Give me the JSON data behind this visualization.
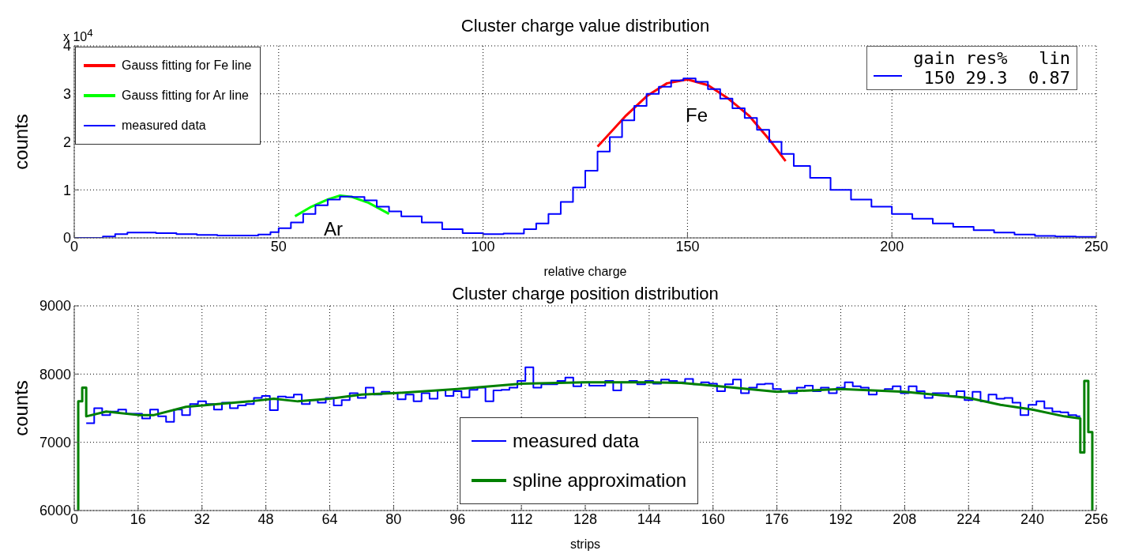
{
  "chart_data": [
    {
      "type": "line",
      "title": "Cluster charge value distribution",
      "xlabel": "relative charge",
      "ylabel": "counts",
      "xlim": [
        0,
        250
      ],
      "xticks": [
        0,
        50,
        100,
        150,
        200,
        250
      ],
      "ylim": [
        0,
        4
      ],
      "yticks": [
        0,
        1,
        2,
        3,
        4
      ],
      "grid": true,
      "legend": "top left",
      "annotations": [
        "x 10$^{4}$",
        "Fe",
        "Ar",
        "gain res%   lin",
        "150 29.3  0.87"
      ],
      "series": [
        {
          "name": "Gauss fitting for Fe line",
          "type": "line",
          "color": "#ff0000",
          "x": [
            128,
            135,
            140,
            145,
            150,
            155,
            160,
            165,
            170,
            174
          ],
          "values": [
            1.9,
            2.55,
            2.95,
            3.22,
            3.3,
            3.18,
            2.9,
            2.55,
            2.05,
            1.6
          ]
        },
        {
          "name": "Gauss fitting for Ar line",
          "type": "line",
          "color": "#00ff00",
          "x": [
            54,
            58,
            62,
            65,
            68,
            72,
            77
          ],
          "values": [
            0.45,
            0.65,
            0.8,
            0.88,
            0.85,
            0.73,
            0.5
          ]
        },
        {
          "name": "measured data",
          "type": "step",
          "color": "#0000ff",
          "x": [
            0,
            5,
            7,
            10,
            13,
            20,
            25,
            30,
            35,
            40,
            45,
            48,
            50,
            53,
            56,
            59,
            62,
            65,
            68,
            71,
            74,
            77,
            80,
            85,
            90,
            95,
            100,
            105,
            110,
            113,
            116,
            119,
            122,
            125,
            128,
            131,
            134,
            137,
            140,
            143,
            146,
            149,
            152,
            155,
            158,
            161,
            164,
            167,
            170,
            173,
            176,
            180,
            185,
            190,
            195,
            200,
            205,
            210,
            215,
            220,
            225,
            230,
            235,
            240,
            245,
            250
          ],
          "values": [
            0,
            0,
            0.03,
            0.08,
            0.11,
            0.1,
            0.08,
            0.06,
            0.05,
            0.05,
            0.07,
            0.12,
            0.2,
            0.32,
            0.5,
            0.68,
            0.8,
            0.86,
            0.85,
            0.78,
            0.65,
            0.55,
            0.45,
            0.32,
            0.18,
            0.1,
            0.08,
            0.09,
            0.18,
            0.3,
            0.5,
            0.75,
            1.05,
            1.4,
            1.8,
            2.1,
            2.45,
            2.75,
            3.0,
            3.15,
            3.28,
            3.32,
            3.25,
            3.1,
            2.9,
            2.7,
            2.5,
            2.25,
            2.0,
            1.75,
            1.5,
            1.25,
            1.0,
            0.8,
            0.65,
            0.5,
            0.4,
            0.3,
            0.23,
            0.16,
            0.11,
            0.07,
            0.04,
            0.03,
            0.02,
            0.01
          ]
        }
      ]
    },
    {
      "type": "line",
      "title": "Cluster charge position distribution",
      "xlabel": "strips",
      "ylabel": "counts",
      "xlim": [
        0,
        256
      ],
      "xticks": [
        0,
        16,
        32,
        48,
        64,
        80,
        96,
        112,
        128,
        144,
        160,
        176,
        192,
        208,
        224,
        240,
        256
      ],
      "ylim": [
        6000,
        9000
      ],
      "yticks": [
        6000,
        7000,
        8000,
        9000
      ],
      "grid": true,
      "legend": "bottom",
      "series": [
        {
          "name": "measured data",
          "type": "step",
          "color": "#0000ff",
          "x": [
            3,
            5,
            7,
            9,
            11,
            13,
            15,
            17,
            19,
            21,
            23,
            25,
            27,
            29,
            31,
            33,
            35,
            37,
            39,
            41,
            43,
            45,
            47,
            49,
            51,
            53,
            55,
            57,
            59,
            61,
            63,
            65,
            67,
            69,
            71,
            73,
            75,
            77,
            79,
            81,
            83,
            85,
            87,
            89,
            91,
            93,
            95,
            97,
            99,
            101,
            103,
            105,
            107,
            109,
            111,
            113,
            115,
            117,
            119,
            121,
            123,
            125,
            127,
            129,
            131,
            133,
            135,
            137,
            139,
            141,
            143,
            145,
            147,
            149,
            151,
            153,
            155,
            157,
            159,
            161,
            163,
            165,
            167,
            169,
            171,
            173,
            175,
            177,
            179,
            181,
            183,
            185,
            187,
            189,
            191,
            193,
            195,
            197,
            199,
            201,
            203,
            205,
            207,
            209,
            211,
            213,
            215,
            217,
            219,
            221,
            223,
            225,
            227,
            229,
            231,
            233,
            235,
            237,
            239,
            241,
            243,
            245,
            247,
            249,
            251,
            252
          ],
          "values": [
            7280,
            7500,
            7400,
            7450,
            7480,
            7420,
            7420,
            7350,
            7480,
            7380,
            7300,
            7480,
            7400,
            7560,
            7600,
            7560,
            7480,
            7580,
            7500,
            7540,
            7560,
            7650,
            7680,
            7470,
            7670,
            7660,
            7700,
            7560,
            7620,
            7580,
            7650,
            7540,
            7620,
            7720,
            7650,
            7800,
            7700,
            7740,
            7720,
            7630,
            7700,
            7600,
            7720,
            7640,
            7760,
            7680,
            7750,
            7660,
            7770,
            7800,
            7600,
            7760,
            7770,
            7800,
            7900,
            8100,
            7800,
            7850,
            7850,
            7900,
            7950,
            7820,
            7880,
            7830,
            7830,
            7900,
            7760,
            7880,
            7900,
            7850,
            7900,
            7860,
            7920,
            7900,
            7880,
            7930,
            7850,
            7880,
            7860,
            7750,
            7850,
            7920,
            7720,
            7800,
            7850,
            7860,
            7780,
            7750,
            7720,
            7800,
            7830,
            7750,
            7800,
            7720,
            7800,
            7880,
            7820,
            7800,
            7700,
            7760,
            7780,
            7820,
            7720,
            7820,
            7750,
            7650,
            7720,
            7720,
            7680,
            7750,
            7620,
            7740,
            7600,
            7700,
            7640,
            7650,
            7580,
            7400,
            7550,
            7600,
            7500,
            7450,
            7440,
            7400,
            7380,
            7380
          ]
        },
        {
          "name": "spline approximation",
          "type": "line",
          "color": "#008000",
          "x": [
            1,
            1,
            2,
            2,
            3,
            3,
            8,
            16,
            20,
            28,
            36,
            44,
            50,
            56,
            64,
            72,
            80,
            96,
            112,
            128,
            144,
            152,
            160,
            176,
            192,
            208,
            224,
            232,
            240,
            248,
            252,
            252,
            253,
            253,
            254,
            254,
            255,
            255
          ],
          "values": [
            6000,
            7600,
            7600,
            7800,
            7800,
            7380,
            7450,
            7400,
            7400,
            7520,
            7560,
            7600,
            7640,
            7600,
            7640,
            7700,
            7720,
            7780,
            7860,
            7880,
            7880,
            7870,
            7830,
            7740,
            7780,
            7740,
            7650,
            7550,
            7480,
            7380,
            7350,
            6850,
            6850,
            7900,
            7900,
            7150,
            7150,
            6000
          ]
        }
      ]
    }
  ]
}
